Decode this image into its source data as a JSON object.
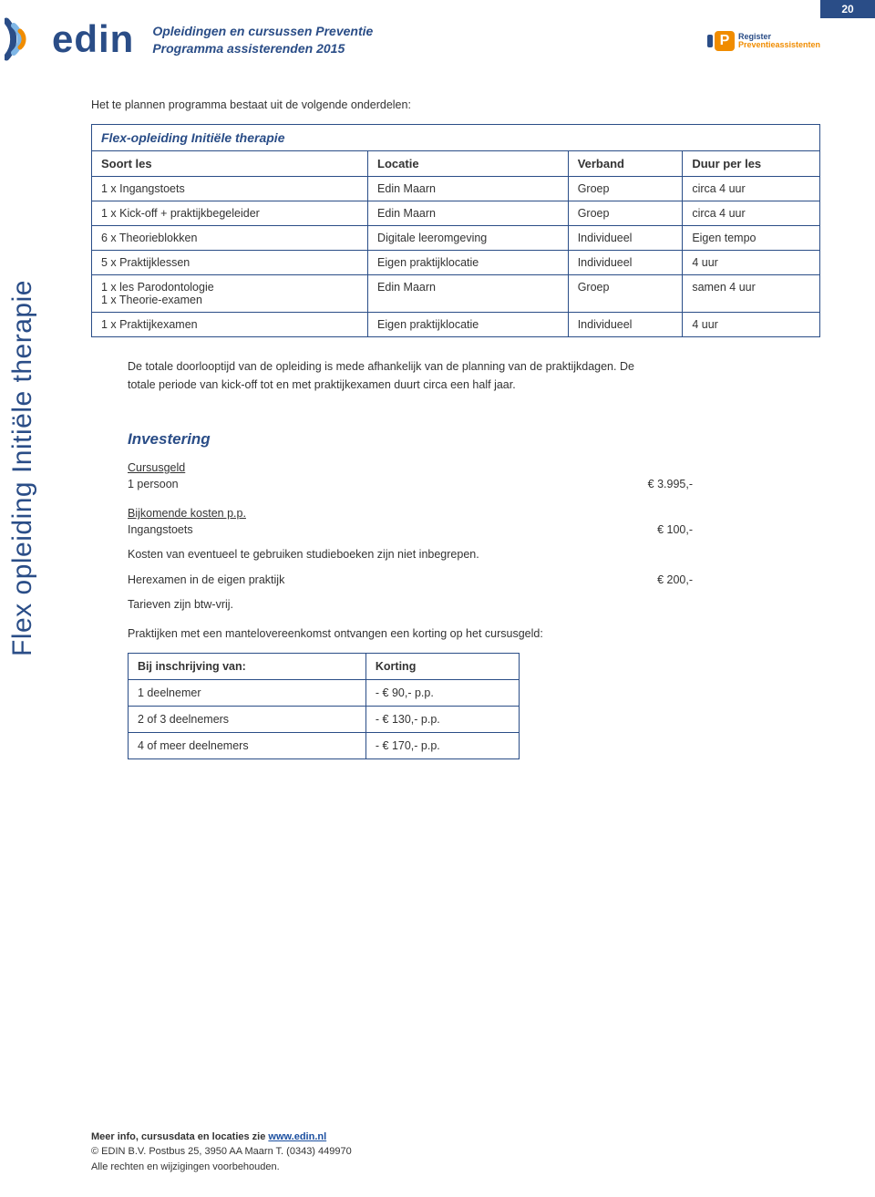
{
  "page_number": "20",
  "header": {
    "title": "Opleidingen en cursussen Preventie",
    "subtitle": "Programma assisterenden 2015",
    "logo_text": "edin",
    "register_badge": {
      "line1": "Register",
      "line2": "Preventieassistenten",
      "letter": "P"
    }
  },
  "side_label": "Flex opleiding Initiële therapie",
  "intro_text": "Het te plannen programma bestaat uit de volgende onderdelen:",
  "program_table": {
    "title": "Flex-opleiding Initiële therapie",
    "columns": [
      "Soort les",
      "Locatie",
      "Verband",
      "Duur per les"
    ],
    "rows": [
      [
        "1 x Ingangstoets",
        "Edin Maarn",
        "Groep",
        "circa 4 uur"
      ],
      [
        "1 x Kick-off + praktijkbegeleider",
        "Edin Maarn",
        "Groep",
        "circa 4 uur"
      ],
      [
        "6 x Theorieblokken",
        "Digitale leeromgeving",
        "Individueel",
        "Eigen tempo"
      ],
      [
        "5 x Praktijklessen",
        "Eigen praktijklocatie",
        "Individueel",
        "4 uur"
      ],
      [
        "1 x les Parodontologie\n1 x Theorie-examen",
        "Edin Maarn",
        "Groep",
        "samen 4 uur"
      ],
      [
        "1 x Praktijkexamen",
        "Eigen praktijklocatie",
        "Individueel",
        "4 uur"
      ]
    ]
  },
  "duration_paragraph": "De totale doorlooptijd van de opleiding is mede afhankelijk van de planning van de praktijkdagen. De totale periode van kick-off tot en met praktijkexamen duurt circa een half jaar.",
  "investering": {
    "heading": "Investering",
    "cursusgeld_label": "Cursusgeld",
    "cursusgeld_item": "1 persoon",
    "cursusgeld_price": "€       3.995,-",
    "bijkomende_label": "Bijkomende kosten p.p.",
    "ingangstoets_label": "Ingangstoets",
    "ingangstoets_price": "€          100,-",
    "books_note": "Kosten van eventueel te gebruiken studieboeken zijn niet inbegrepen.",
    "herexamen_label": "Herexamen in de eigen praktijk",
    "herexamen_price": "€          200,-",
    "btw_note": "Tarieven zijn btw-vrij.",
    "mantel_note": "Praktijken met een mantelovereenkomst ontvangen een korting op het cursusgeld:",
    "discount_table": {
      "columns": [
        "Bij inschrijving van:",
        "Korting"
      ],
      "rows": [
        [
          "1 deelnemer",
          "- € 90,- p.p."
        ],
        [
          "2 of 3 deelnemers",
          "- € 130,- p.p."
        ],
        [
          "4 of meer deelnemers",
          "- € 170,- p.p."
        ]
      ]
    }
  },
  "footer": {
    "line1_prefix": "Meer info, cursusdata en locaties zie ",
    "line1_link": "www.edin.nl",
    "line2": "© EDIN B.V.  Postbus 25, 3950 AA  Maarn  T. (0343) 449970",
    "line3": "Alle rechten en wijzigingen voorbehouden."
  },
  "colors": {
    "brand_blue": "#2a4d87",
    "orange": "#f08c00",
    "text": "#333333",
    "background": "#ffffff"
  }
}
